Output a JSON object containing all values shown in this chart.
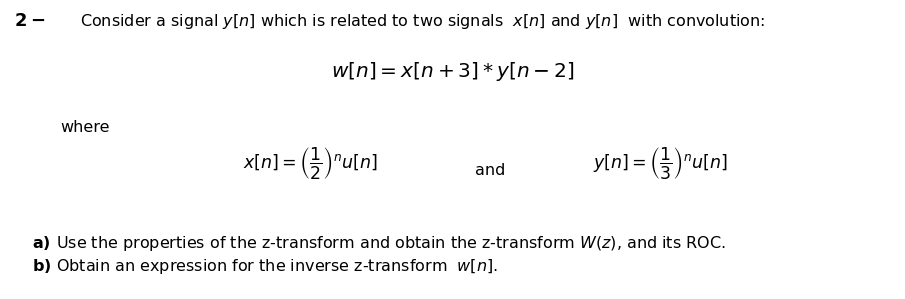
{
  "background_color": "#ffffff",
  "fig_width": 9.05,
  "fig_height": 2.99,
  "dpi": 100,
  "line1_num": "2-",
  "line1_text": "Consider a signal $y[n]$ which is related to two signals  $x[n]$ and $y[n]$  with convolution:",
  "line2_eq": "$w[n] = x[n+3] * y[n-2]$",
  "line3_where": "where",
  "line4_xn": "$x[n] = \\left(\\dfrac{1}{2}\\right)^{n} u[n]$",
  "line4_and": "and",
  "line4_yn": "$y[n] = \\left(\\dfrac{1}{3}\\right)^{n} u[n]$",
  "line5_a_bold": "a)",
  "line5_a_text": "Use the properties of the z-transform and obtain the z-transform $W(z)$, and its ROC.",
  "line6_b_bold": "b)",
  "line6_b_text": "Obtain an expression for the inverse z-transform  $w[n]$.",
  "fs_main": 11.5,
  "fs_eq": 13.5,
  "fs_small_eq": 12.5
}
